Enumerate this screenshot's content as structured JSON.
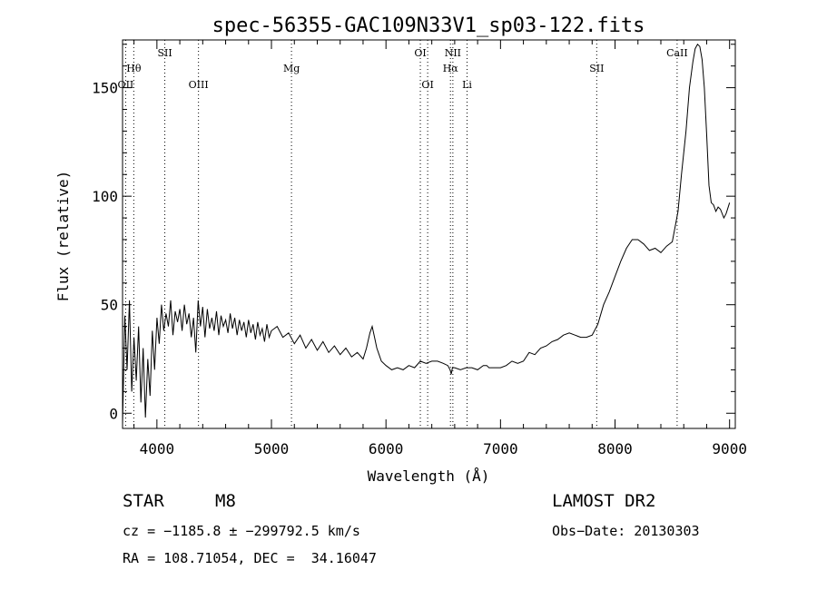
{
  "chart_data": {
    "type": "line",
    "title": "spec-56355-GAC109N33V1_sp03-122.fits",
    "xlabel": "Wavelength (Å)",
    "ylabel": "Flux (relative)",
    "xlim": [
      3700,
      9050
    ],
    "ylim": [
      -7,
      172
    ],
    "xticks": [
      4000,
      5000,
      6000,
      7000,
      8000,
      9000
    ],
    "yticks": [
      0,
      50,
      100,
      150
    ],
    "grid": false,
    "series": [
      {
        "x": [
          3700,
          3720,
          3740,
          3760,
          3780,
          3800,
          3820,
          3840,
          3860,
          3880,
          3900,
          3920,
          3940,
          3960,
          3980,
          4000,
          4020,
          4040,
          4060,
          4080,
          4100,
          4120,
          4140,
          4160,
          4180,
          4200,
          4220,
          4240,
          4260,
          4280,
          4300,
          4320,
          4340,
          4360,
          4380,
          4400,
          4420,
          4440,
          4460,
          4480,
          4500,
          4520,
          4540,
          4560,
          4580,
          4600,
          4620,
          4640,
          4660,
          4680,
          4700,
          4720,
          4740,
          4760,
          4780,
          4800,
          4820,
          4840,
          4860,
          4880,
          4900,
          4920,
          4940,
          4960,
          4980,
          5000,
          5050,
          5100,
          5150,
          5200,
          5250,
          5300,
          5350,
          5400,
          5450,
          5500,
          5550,
          5600,
          5650,
          5700,
          5750,
          5800,
          5830,
          5860,
          5880,
          5900,
          5920,
          5940,
          5960,
          6000,
          6050,
          6100,
          6150,
          6200,
          6250,
          6300,
          6350,
          6400,
          6450,
          6500,
          6540,
          6560,
          6570,
          6580,
          6600,
          6650,
          6700,
          6750,
          6800,
          6850,
          6880,
          6900,
          6950,
          7000,
          7050,
          7100,
          7150,
          7200,
          7250,
          7300,
          7350,
          7400,
          7450,
          7500,
          7550,
          7600,
          7650,
          7700,
          7750,
          7800,
          7850,
          7900,
          7950,
          8000,
          8050,
          8100,
          8150,
          8200,
          8250,
          8300,
          8350,
          8400,
          8450,
          8500,
          8550,
          8580,
          8620,
          8650,
          8680,
          8700,
          8720,
          8740,
          8760,
          8780,
          8800,
          8820,
          8840,
          8860,
          8880,
          8900,
          8920,
          8950,
          8970,
          9000
        ],
        "y": [
          -5,
          45,
          20,
          52,
          10,
          35,
          15,
          40,
          5,
          30,
          -2,
          25,
          8,
          38,
          20,
          44,
          32,
          50,
          38,
          46,
          40,
          52,
          36,
          47,
          42,
          48,
          38,
          50,
          41,
          46,
          35,
          44,
          28,
          52,
          40,
          49,
          35,
          48,
          39,
          44,
          38,
          47,
          36,
          45,
          40,
          43,
          37,
          46,
          39,
          44,
          36,
          43,
          38,
          42,
          35,
          43,
          37,
          41,
          34,
          42,
          36,
          39,
          33,
          41,
          35,
          38,
          40,
          35,
          37,
          32,
          36,
          30,
          34,
          29,
          33,
          28,
          31,
          27,
          30,
          26,
          28,
          25,
          30,
          37,
          40,
          35,
          30,
          27,
          24,
          22,
          20,
          21,
          20,
          22,
          21,
          24,
          23,
          24,
          24,
          23,
          22,
          20,
          18,
          21,
          21,
          20,
          21,
          21,
          20,
          22,
          22,
          21,
          21,
          21,
          22,
          24,
          23,
          24,
          28,
          27,
          30,
          31,
          33,
          34,
          36,
          37,
          36,
          35,
          35,
          36,
          41,
          50,
          56,
          63,
          70,
          76,
          80,
          80,
          78,
          75,
          76,
          74,
          77,
          79,
          93,
          110,
          130,
          150,
          162,
          168,
          170,
          169,
          163,
          150,
          128,
          105,
          97,
          96,
          93,
          95,
          94,
          90,
          92,
          97
        ]
      }
    ],
    "line_markers": {
      "row1": [
        {
          "label": "SII",
          "x": 4069
        },
        {
          "label": "OI",
          "x": 6300
        },
        {
          "label": "NII",
          "x": 6584
        },
        {
          "label": "CaII",
          "x": 8542
        }
      ],
      "row2": [
        {
          "label": "Hθ",
          "x": 3798
        },
        {
          "label": "Mg",
          "x": 5175
        },
        {
          "label": "Hα",
          "x": 6563
        },
        {
          "label": "SII",
          "x": 7840
        }
      ],
      "row3": [
        {
          "label": "OII",
          "x": 3727
        },
        {
          "label": "OIII",
          "x": 4363
        },
        {
          "label": "OI",
          "x": 6364
        },
        {
          "label": "Li",
          "x": 6708
        }
      ]
    }
  },
  "footer": {
    "object_type": "STAR",
    "subclass": "M8",
    "survey": "LAMOST DR2",
    "cz": "cz = −1185.8 ± −299792.5 km/s",
    "obs_date": "Obs−Date: 20130303",
    "coords": "RA = 108.71054, DEC =  34.16047"
  }
}
